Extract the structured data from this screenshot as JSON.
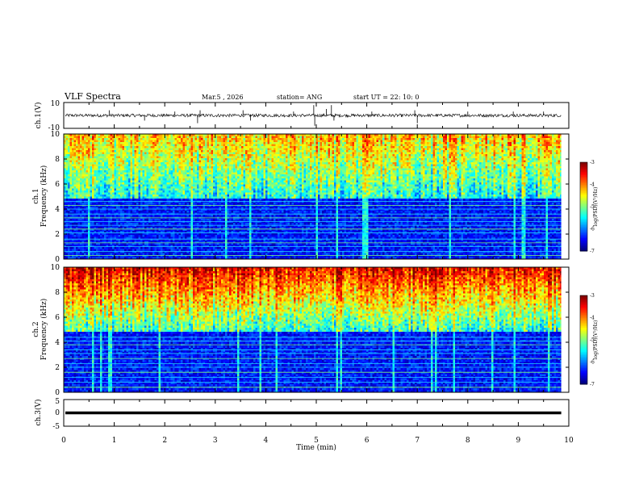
{
  "header": {
    "title": "VLF Spectra",
    "date": "Mar.5  , 2026",
    "station": "station= ANG",
    "start": "start  UT  =    22: 10: 0"
  },
  "chart_data": [
    {
      "type": "line",
      "name": "ch1-waveform",
      "ylabel": "ch.1(V)",
      "ylim": [
        -10,
        10
      ],
      "yticks": [
        "10",
        "-10"
      ],
      "baseline": 0,
      "noise_amplitude": 1.2,
      "spikes": [
        [
          0.9,
          4
        ],
        [
          1.6,
          -4
        ],
        [
          2.2,
          3
        ],
        [
          2.7,
          4
        ],
        [
          2.65,
          -6
        ],
        [
          3.55,
          4
        ],
        [
          3.7,
          -4
        ],
        [
          4.55,
          3
        ],
        [
          4.95,
          8
        ],
        [
          4.97,
          -8
        ],
        [
          5.2,
          5
        ],
        [
          5.3,
          8
        ],
        [
          5.35,
          -4
        ],
        [
          6.1,
          3
        ],
        [
          6.95,
          4
        ],
        [
          7.0,
          -6
        ],
        [
          8.0,
          3
        ],
        [
          8.9,
          3
        ],
        [
          9.5,
          3
        ]
      ]
    },
    {
      "type": "heatmap",
      "name": "ch1-spectrogram",
      "ylabel": "ch.1\nFrequency  (kHz)",
      "ylabel_lines": [
        "ch.1",
        "Frequency  (kHz)"
      ],
      "ylim": [
        0,
        10
      ],
      "yticks": [
        "0",
        "2",
        "4",
        "6",
        "8",
        "10"
      ],
      "bands_khz": [
        0.3,
        0.6,
        1.0,
        1.3,
        1.6,
        2.1,
        2.4,
        2.7,
        3.0,
        3.3,
        3.6,
        4.0,
        4.3,
        4.6
      ],
      "colorbar": {
        "label": "log(PSD)(V²/Hz)",
        "range": [
          -7,
          -3
        ],
        "ticks": [
          "-3",
          "-4",
          "-5",
          "-6",
          "-7"
        ]
      }
    },
    {
      "type": "heatmap",
      "name": "ch2-spectrogram",
      "ylabel": "ch.2\nFrequency  (kHz)",
      "ylabel_lines": [
        "ch.2",
        "Frequency  (kHz)"
      ],
      "ylim": [
        0,
        10
      ],
      "yticks": [
        "0",
        "2",
        "4",
        "6",
        "8",
        "10"
      ],
      "bands_khz": [
        0.4,
        0.8,
        1.2,
        1.6,
        2.0,
        2.3,
        2.7,
        3.1,
        3.4,
        3.8,
        4.1,
        4.4
      ],
      "colorbar": {
        "label": "log(PSD)(V²/Hz)",
        "range": [
          -7,
          -3
        ],
        "ticks": [
          "-3",
          "-4",
          "-5",
          "-6",
          "-7"
        ]
      }
    },
    {
      "type": "line",
      "name": "ch3-waveform",
      "ylabel": "ch.3(V)",
      "ylim": [
        -5,
        5
      ],
      "yticks": [
        "5",
        "0",
        "-5"
      ],
      "baseline": 0
    }
  ],
  "xaxis": {
    "label": "Time  (min)",
    "xlim": [
      0,
      10
    ],
    "ticks": [
      "0",
      "1",
      "2",
      "3",
      "4",
      "5",
      "6",
      "7",
      "8",
      "9",
      "10"
    ],
    "data_end": 9.85
  }
}
